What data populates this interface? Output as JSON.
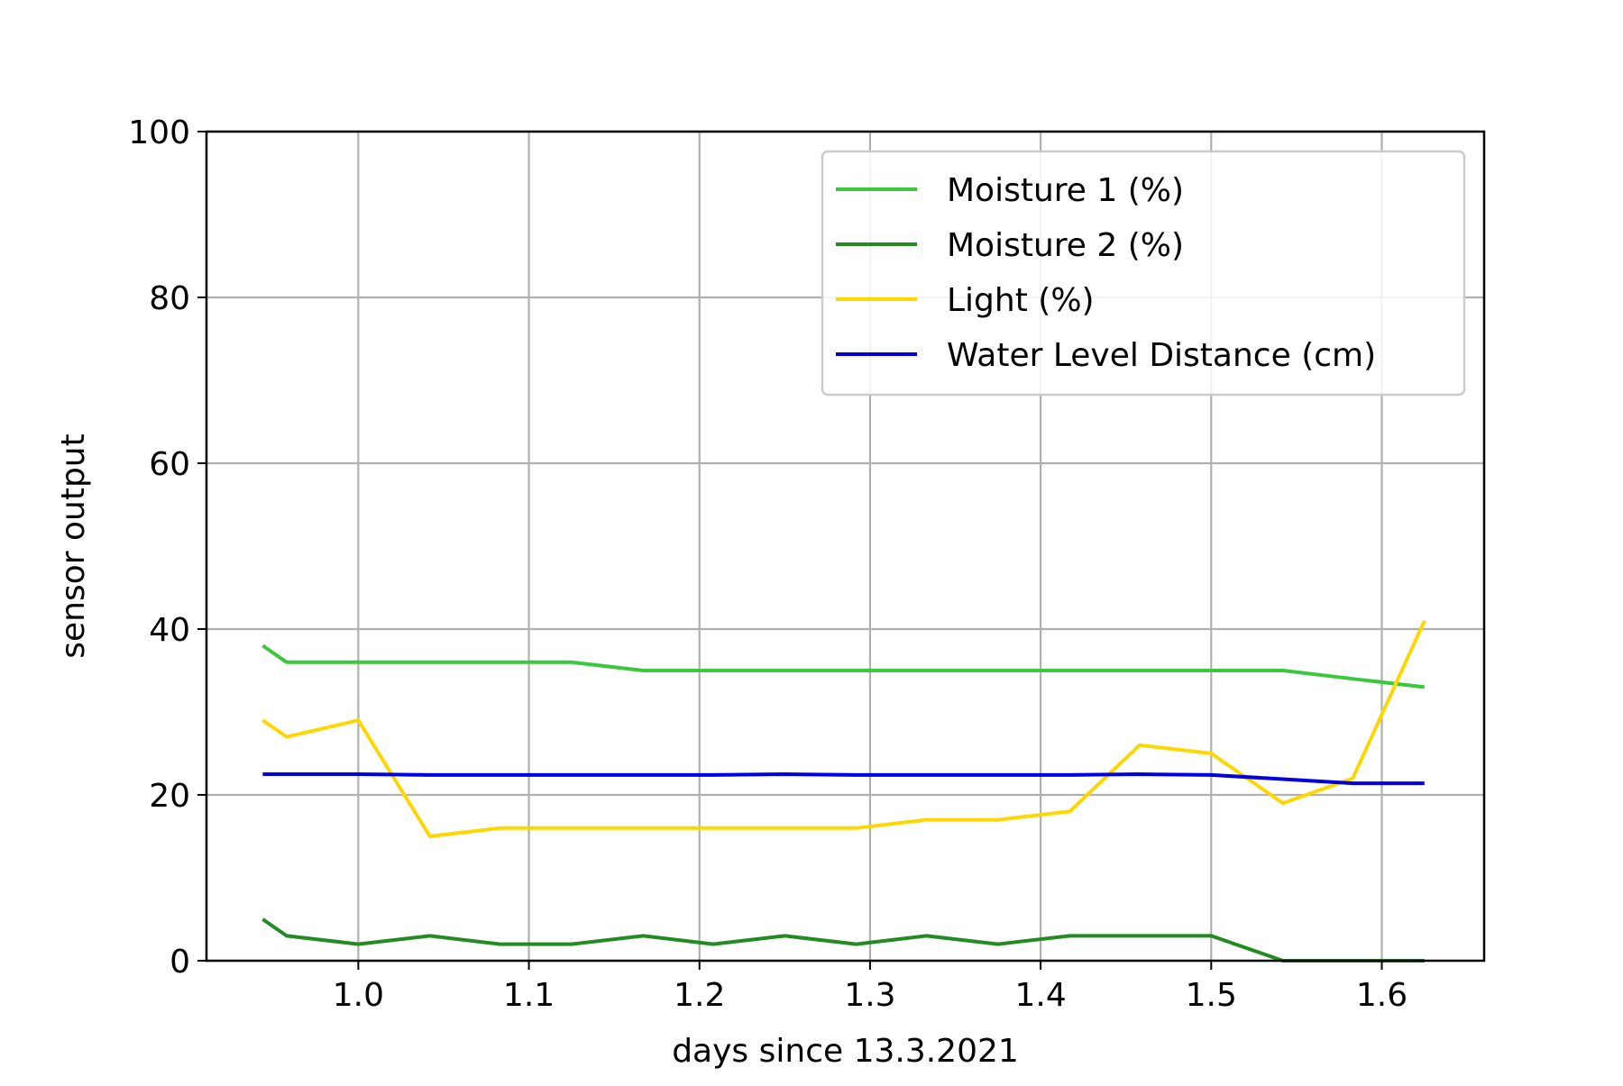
{
  "chart_data": {
    "type": "line",
    "xlabel": "days since 13.3.2021",
    "ylabel": "sensor output",
    "xlim": [
      0.911,
      1.66
    ],
    "ylim": [
      0,
      100
    ],
    "grid": true,
    "legend_position": "top-right",
    "x_ticks": [
      1.0,
      1.1,
      1.2,
      1.3,
      1.4,
      1.5,
      1.6
    ],
    "x_tick_labels": [
      "1.0",
      "1.1",
      "1.2",
      "1.3",
      "1.4",
      "1.5",
      "1.6"
    ],
    "y_ticks": [
      0,
      20,
      40,
      60,
      80,
      100
    ],
    "y_tick_labels": [
      "0",
      "20",
      "40",
      "60",
      "80",
      "100"
    ],
    "series": [
      {
        "name": "Moisture 1 (%)",
        "color": "#3cc83c",
        "x": [
          0.944,
          0.958,
          1.0,
          1.042,
          1.083,
          1.125,
          1.167,
          1.208,
          1.25,
          1.292,
          1.333,
          1.375,
          1.417,
          1.458,
          1.5,
          1.542,
          1.583,
          1.625
        ],
        "y": [
          38,
          36,
          36,
          36,
          36,
          36,
          35,
          35,
          35,
          35,
          35,
          35,
          35,
          35,
          35,
          35,
          34,
          33
        ]
      },
      {
        "name": "Moisture 2 (%)",
        "color": "#228b22",
        "x": [
          0.944,
          0.958,
          1.0,
          1.042,
          1.083,
          1.125,
          1.167,
          1.208,
          1.25,
          1.292,
          1.333,
          1.375,
          1.417,
          1.458,
          1.5,
          1.542,
          1.583,
          1.625
        ],
        "y": [
          5,
          3,
          2,
          3,
          2,
          2,
          3,
          2,
          3,
          2,
          3,
          2,
          3,
          3,
          3,
          0,
          0,
          0
        ]
      },
      {
        "name": "Light (%)",
        "color": "#ffd700",
        "x": [
          0.944,
          0.958,
          1.0,
          1.042,
          1.083,
          1.125,
          1.167,
          1.208,
          1.25,
          1.292,
          1.333,
          1.375,
          1.417,
          1.458,
          1.5,
          1.542,
          1.583,
          1.625
        ],
        "y": [
          29,
          27,
          29,
          15,
          16,
          16,
          16,
          16,
          16,
          16,
          17,
          17,
          18,
          26,
          25,
          19,
          22,
          41
        ]
      },
      {
        "name": "Water Level Distance (cm)",
        "color": "#0000e0",
        "x": [
          0.944,
          0.958,
          1.0,
          1.042,
          1.083,
          1.125,
          1.167,
          1.208,
          1.25,
          1.292,
          1.333,
          1.375,
          1.417,
          1.458,
          1.5,
          1.542,
          1.583,
          1.625
        ],
        "y": [
          22.5,
          22.5,
          22.5,
          22.4,
          22.4,
          22.4,
          22.4,
          22.4,
          22.5,
          22.4,
          22.4,
          22.4,
          22.4,
          22.5,
          22.4,
          21.9,
          21.4,
          21.4
        ]
      }
    ]
  }
}
